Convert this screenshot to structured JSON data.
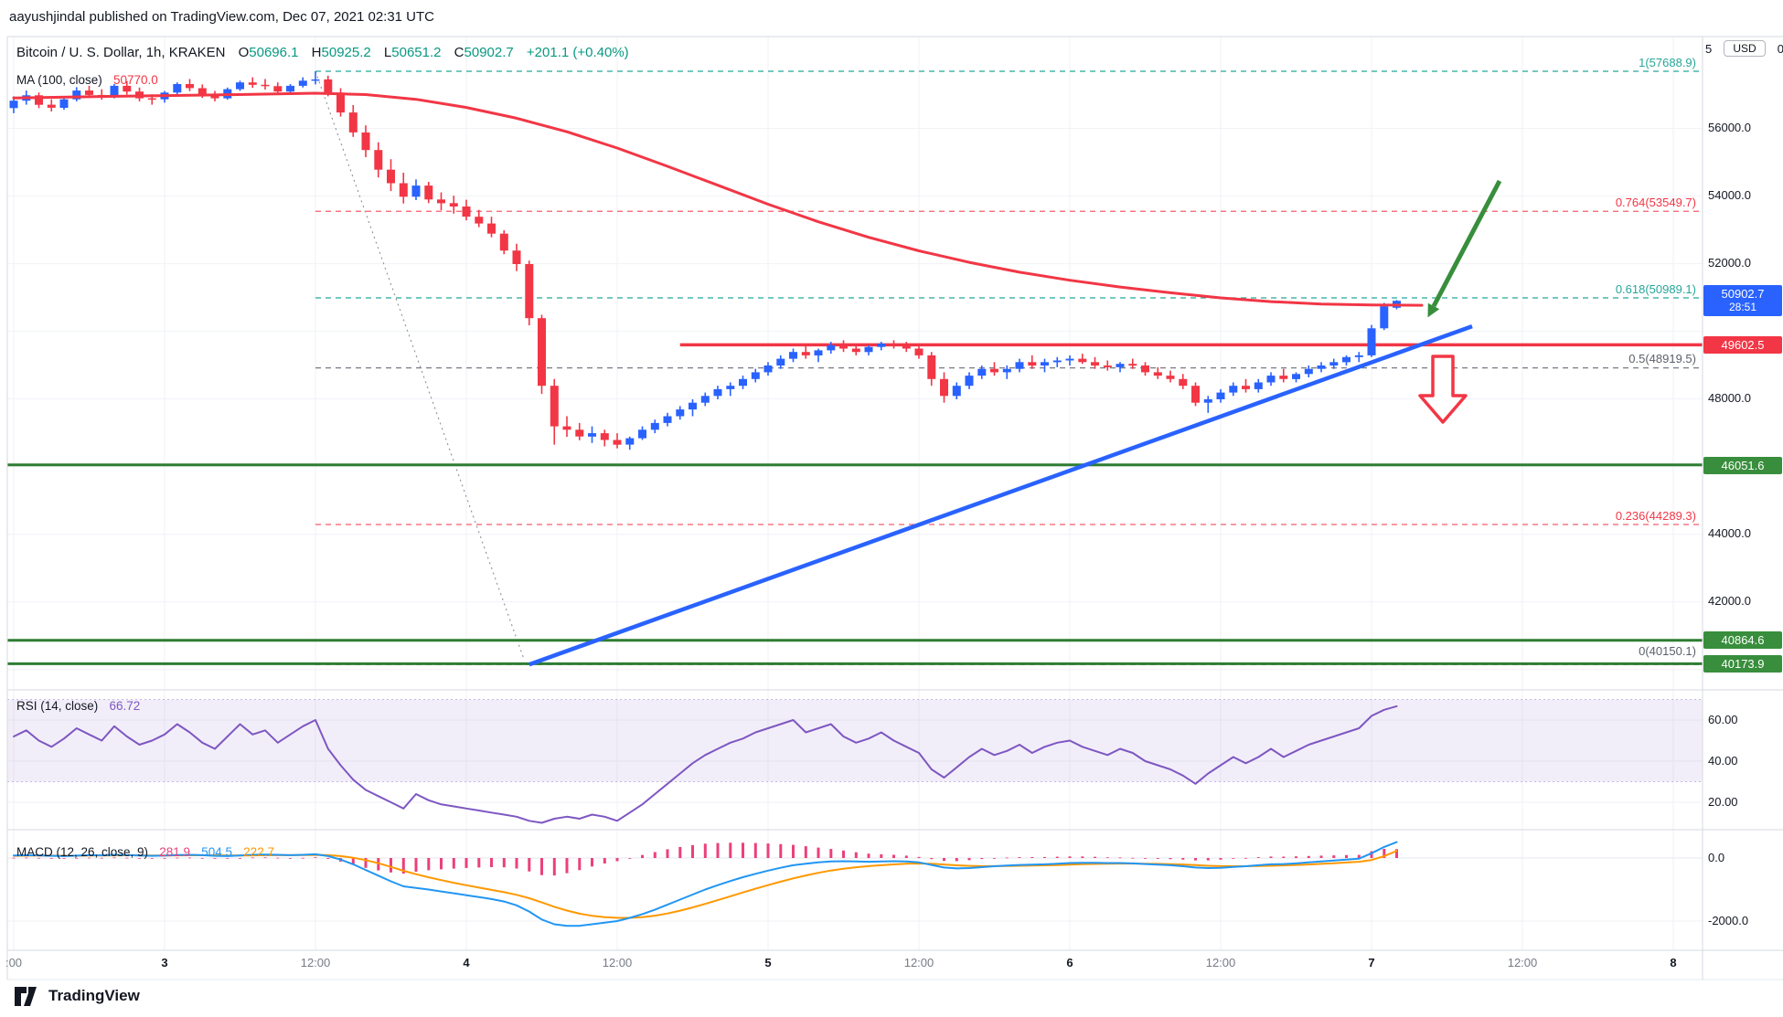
{
  "header": {
    "publish_info": "aayushjindal published on TradingView.com, Dec 07, 2021 02:31 UTC"
  },
  "footer": {
    "brand": "TradingView"
  },
  "legend": {
    "symbol_title": "Bitcoin / U. S. Dollar, 1h, KRAKEN",
    "o_label": "O",
    "o_value": "50696.1",
    "h_label": "H",
    "h_value": "50925.2",
    "l_label": "L",
    "l_value": "50651.2",
    "c_label": "C",
    "c_value": "50902.7",
    "change": "+201.1 (+0.40%)",
    "ma_label": "MA (100, close)",
    "ma_value": "50770.0",
    "rsi_label": "RSI (14, close)",
    "rsi_value": "66.72",
    "macd_label": "MACD (12, 26, close, 9)",
    "macd_hist_value": "281.9",
    "macd_value": "504.5",
    "macd_signal_value": "222.7"
  },
  "price_axis": {
    "currency": "USD",
    "top_partial_left": "5",
    "top_partial_right": "0",
    "ticks": [
      "56000.0",
      "54000.0",
      "52000.0",
      "48000.0",
      "44000.0",
      "42000.0"
    ],
    "badges": {
      "last": {
        "text": "50902.7",
        "countdown": "28:51"
      },
      "resistance": {
        "text": "49602.5"
      },
      "support1": {
        "text": "46051.6"
      },
      "support2": {
        "text": "40864.6"
      },
      "support3": {
        "text": "40173.9"
      }
    }
  },
  "rsi_axis": {
    "ticks": [
      "60.00",
      "40.00",
      "20.00"
    ]
  },
  "macd_axis": {
    "ticks": [
      "0.0",
      "-2000.0"
    ]
  },
  "fib_labels": [
    {
      "text": "1(57688.9)",
      "style": "teal"
    },
    {
      "text": "0.764(53549.7)",
      "style": "red"
    },
    {
      "text": "0.618(50989.1)",
      "style": "teal"
    },
    {
      "text": "0.5(48919.5)",
      "style": "gray"
    },
    {
      "text": "0.236(44289.3)",
      "style": "red"
    },
    {
      "text": "0(40150.1)",
      "style": "gray"
    }
  ],
  "chart_data": {
    "type": "candlestick",
    "title": "Bitcoin / U. S. Dollar, 1h, KRAKEN",
    "interval": "1h",
    "exchange": "KRAKEN",
    "current_bar": {
      "open": 50696.1,
      "high": 50925.2,
      "low": 50651.2,
      "close": 50902.7,
      "change": "+201.1 (+0.40%)"
    },
    "price_axis": {
      "range": [
        39400,
        58500
      ],
      "grid_values": [
        56000,
        54000,
        52000,
        50000,
        48000,
        46000,
        44000,
        42000,
        40000
      ]
    },
    "x_axis": {
      "labels": [
        {
          "text": ":00",
          "idx": 0
        },
        {
          "text": "3",
          "idx": 12,
          "day": true
        },
        {
          "text": "12:00",
          "idx": 24
        },
        {
          "text": "4",
          "idx": 36,
          "day": true
        },
        {
          "text": "12:00",
          "idx": 48
        },
        {
          "text": "5",
          "idx": 60,
          "day": true
        },
        {
          "text": "12:00",
          "idx": 72
        },
        {
          "text": "6",
          "idx": 84,
          "day": true
        },
        {
          "text": "12:00",
          "idx": 96
        },
        {
          "text": "7",
          "idx": 108,
          "day": true
        },
        {
          "text": "12:00",
          "idx": 120
        },
        {
          "text": "8",
          "idx": 132,
          "day": true
        }
      ]
    },
    "candles": [
      [
        56600,
        56950,
        56450,
        56820
      ],
      [
        56820,
        57120,
        56700,
        56980
      ],
      [
        56980,
        57060,
        56600,
        56700
      ],
      [
        56700,
        56860,
        56500,
        56610
      ],
      [
        56610,
        56920,
        56550,
        56860
      ],
      [
        56860,
        57220,
        56800,
        57120
      ],
      [
        57120,
        57260,
        56900,
        56990
      ],
      [
        56990,
        57160,
        56850,
        56940
      ],
      [
        56940,
        57310,
        56890,
        57260
      ],
      [
        57260,
        57400,
        57000,
        57090
      ],
      [
        57090,
        57210,
        56800,
        56890
      ],
      [
        56890,
        57010,
        56700,
        56860
      ],
      [
        56860,
        57110,
        56760,
        57060
      ],
      [
        57060,
        57360,
        57010,
        57310
      ],
      [
        57310,
        57460,
        57100,
        57190
      ],
      [
        57190,
        57300,
        56900,
        56990
      ],
      [
        56990,
        57110,
        56800,
        56890
      ],
      [
        56890,
        57210,
        56850,
        57160
      ],
      [
        57160,
        57410,
        57110,
        57360
      ],
      [
        57360,
        57510,
        57200,
        57290
      ],
      [
        57290,
        57460,
        57150,
        57250
      ],
      [
        57250,
        57360,
        57000,
        57090
      ],
      [
        57090,
        57310,
        57050,
        57260
      ],
      [
        57260,
        57510,
        57210,
        57410
      ],
      [
        57410,
        57688.9,
        57300,
        57450
      ],
      [
        57450,
        57560,
        56950,
        57060
      ],
      [
        57060,
        57190,
        56350,
        56470
      ],
      [
        56470,
        56690,
        55750,
        55880
      ],
      [
        55880,
        56090,
        55150,
        55360
      ],
      [
        55360,
        55590,
        54550,
        54780
      ],
      [
        54780,
        55090,
        54150,
        54380
      ],
      [
        54380,
        54690,
        53780,
        53980
      ],
      [
        53980,
        54490,
        53880,
        54310
      ],
      [
        54310,
        54420,
        53790,
        53900
      ],
      [
        53900,
        54110,
        53580,
        53790
      ],
      [
        53790,
        54010,
        53480,
        53690
      ],
      [
        53690,
        53890,
        53280,
        53390
      ],
      [
        53390,
        53590,
        53080,
        53190
      ],
      [
        53190,
        53390,
        52780,
        52890
      ],
      [
        52890,
        52990,
        52280,
        52390
      ],
      [
        52390,
        52590,
        51780,
        51990
      ],
      [
        51990,
        52090,
        50180,
        50390
      ],
      [
        50390,
        50490,
        48150,
        48390
      ],
      [
        48390,
        48590,
        46650,
        47190
      ],
      [
        47190,
        47490,
        46880,
        47090
      ],
      [
        47090,
        47290,
        46780,
        46890
      ],
      [
        46890,
        47190,
        46700,
        46990
      ],
      [
        46990,
        47090,
        46600,
        46790
      ],
      [
        46790,
        46990,
        46540,
        46650
      ],
      [
        46650,
        46890,
        46500,
        46840
      ],
      [
        46840,
        47190,
        46790,
        47090
      ],
      [
        47090,
        47390,
        46990,
        47290
      ],
      [
        47290,
        47590,
        47190,
        47490
      ],
      [
        47490,
        47790,
        47390,
        47690
      ],
      [
        47690,
        47990,
        47490,
        47890
      ],
      [
        47890,
        48190,
        47790,
        48090
      ],
      [
        48090,
        48390,
        47990,
        48290
      ],
      [
        48290,
        48490,
        48090,
        48390
      ],
      [
        48390,
        48690,
        48290,
        48590
      ],
      [
        48590,
        48890,
        48490,
        48790
      ],
      [
        48790,
        49090,
        48690,
        48990
      ],
      [
        48990,
        49290,
        48890,
        49190
      ],
      [
        49190,
        49490,
        49090,
        49390
      ],
      [
        49390,
        49590,
        49190,
        49290
      ],
      [
        49290,
        49490,
        49090,
        49440
      ],
      [
        49440,
        49690,
        49340,
        49590
      ],
      [
        49590,
        49740,
        49390,
        49490
      ],
      [
        49490,
        49640,
        49290,
        49390
      ],
      [
        49390,
        49590,
        49290,
        49540
      ],
      [
        49540,
        49690,
        49440,
        49640
      ],
      [
        49640,
        49740,
        49490,
        49590
      ],
      [
        49590,
        49690,
        49390,
        49490
      ],
      [
        49490,
        49590,
        49190,
        49290
      ],
      [
        49290,
        49390,
        48390,
        48590
      ],
      [
        48590,
        48790,
        47890,
        48090
      ],
      [
        48090,
        48490,
        47990,
        48390
      ],
      [
        48390,
        48790,
        48290,
        48690
      ],
      [
        48690,
        48990,
        48590,
        48890
      ],
      [
        48890,
        49090,
        48690,
        48790
      ],
      [
        48790,
        48990,
        48590,
        48890
      ],
      [
        48890,
        49190,
        48790,
        49090
      ],
      [
        49090,
        49290,
        48890,
        48990
      ],
      [
        48990,
        49190,
        48790,
        49090
      ],
      [
        49090,
        49240,
        48940,
        49140
      ],
      [
        49140,
        49290,
        48990,
        49190
      ],
      [
        49190,
        49340,
        49040,
        49090
      ],
      [
        49090,
        49240,
        48890,
        48990
      ],
      [
        48990,
        49140,
        48840,
        48940
      ],
      [
        48940,
        49090,
        48790,
        49040
      ],
      [
        49040,
        49190,
        48890,
        48990
      ],
      [
        48990,
        49090,
        48690,
        48790
      ],
      [
        48790,
        48940,
        48590,
        48690
      ],
      [
        48690,
        48840,
        48490,
        48590
      ],
      [
        48590,
        48740,
        48290,
        48390
      ],
      [
        48390,
        48490,
        47790,
        47890
      ],
      [
        47890,
        48090,
        47590,
        47990
      ],
      [
        47990,
        48290,
        47890,
        48190
      ],
      [
        48190,
        48490,
        48090,
        48390
      ],
      [
        48390,
        48590,
        48190,
        48290
      ],
      [
        48290,
        48590,
        48190,
        48490
      ],
      [
        48490,
        48790,
        48390,
        48690
      ],
      [
        48690,
        48890,
        48490,
        48590
      ],
      [
        48590,
        48790,
        48490,
        48740
      ],
      [
        48740,
        48990,
        48640,
        48890
      ],
      [
        48890,
        49090,
        48790,
        48990
      ],
      [
        48990,
        49190,
        48890,
        49090
      ],
      [
        49090,
        49290,
        48990,
        49240
      ],
      [
        49240,
        49390,
        49090,
        49290
      ],
      [
        49290,
        50190,
        49240,
        50090
      ],
      [
        50090,
        50840,
        50040,
        50740
      ],
      [
        50696.1,
        50925.2,
        50651.2,
        50902.7
      ]
    ],
    "ma100": {
      "period": 100,
      "source": "close",
      "last": 50770.0,
      "anchors": [
        [
          0,
          56900
        ],
        [
          8,
          56950
        ],
        [
          16,
          56990
        ],
        [
          24,
          57040
        ],
        [
          28,
          57000
        ],
        [
          32,
          56860
        ],
        [
          36,
          56620
        ],
        [
          40,
          56300
        ],
        [
          44,
          55900
        ],
        [
          48,
          55420
        ],
        [
          52,
          54880
        ],
        [
          56,
          54320
        ],
        [
          60,
          53760
        ],
        [
          64,
          53240
        ],
        [
          68,
          52780
        ],
        [
          72,
          52380
        ],
        [
          76,
          52040
        ],
        [
          80,
          51750
        ],
        [
          84,
          51510
        ],
        [
          88,
          51310
        ],
        [
          92,
          51140
        ],
        [
          96,
          50990
        ],
        [
          100,
          50880
        ],
        [
          104,
          50810
        ],
        [
          108,
          50780
        ],
        [
          112,
          50770
        ]
      ]
    },
    "trendline_support": {
      "from": [
        41,
        40150
      ],
      "to": [
        116,
        50150
      ],
      "color": "#2962FF"
    },
    "resistance_line": {
      "price": 49602.5,
      "from_idx": 53,
      "color": "#F23645"
    },
    "support_lines": [
      46051.6,
      40864.6,
      40173.9
    ],
    "fib_retracement": {
      "high": 57688.9,
      "low": 40150.1,
      "from_idx": 24,
      "levels": [
        {
          "level": 1,
          "value": 57688.9,
          "style": "teal"
        },
        {
          "level": 0.764,
          "value": 53549.7,
          "style": "red"
        },
        {
          "level": 0.618,
          "value": 50989.1,
          "style": "teal"
        },
        {
          "level": 0.5,
          "value": 48919.5,
          "style": "gray"
        },
        {
          "level": 0.236,
          "value": 44289.3,
          "style": "red"
        },
        {
          "level": 0,
          "value": 40150.1,
          "style": "gray"
        }
      ]
    },
    "guideline": {
      "from": [
        24,
        57688.9
      ],
      "to": [
        40.6,
        40285
      ]
    },
    "arrows": [
      {
        "type": "trend-arrow",
        "color": "green",
        "direction": "down-left"
      },
      {
        "type": "block-arrow",
        "color": "red",
        "direction": "down"
      }
    ],
    "rsi": {
      "period": 14,
      "last": 66.72,
      "band": [
        30,
        70
      ],
      "ticks": [
        60,
        40,
        20
      ],
      "values": [
        52,
        55,
        50,
        47,
        51,
        56,
        53,
        50,
        57,
        52,
        48,
        50,
        53,
        58,
        54,
        49,
        46,
        52,
        58,
        53,
        55,
        49,
        53,
        57,
        60,
        46,
        38,
        31,
        26,
        23,
        20,
        17,
        24,
        21,
        19,
        18,
        17,
        16,
        15,
        14,
        13,
        11,
        10,
        12,
        13,
        12,
        14,
        13,
        11,
        15,
        19,
        24,
        29,
        34,
        39,
        43,
        46,
        49,
        51,
        54,
        56,
        58,
        60,
        54,
        56,
        58,
        52,
        49,
        51,
        54,
        50,
        47,
        44,
        36,
        32,
        37,
        42,
        46,
        43,
        45,
        48,
        44,
        47,
        49,
        50,
        47,
        45,
        43,
        46,
        44,
        40,
        38,
        36,
        33,
        29,
        34,
        38,
        42,
        39,
        42,
        46,
        42,
        45,
        48,
        50,
        52,
        54,
        56,
        62,
        65,
        66.72
      ]
    },
    "macd": {
      "fast": 12,
      "slow": 26,
      "signal_period": 9,
      "last": {
        "hist": 281.9,
        "macd": 504.5,
        "signal": 222.7
      },
      "ticks": [
        0,
        -2000
      ],
      "macd_values": [
        80,
        90,
        85,
        70,
        60,
        75,
        90,
        85,
        100,
        95,
        80,
        70,
        75,
        95,
        100,
        90,
        70,
        60,
        80,
        100,
        110,
        100,
        90,
        100,
        120,
        60,
        -50,
        -200,
        -380,
        -560,
        -740,
        -900,
        -950,
        -1000,
        -1060,
        -1120,
        -1180,
        -1240,
        -1300,
        -1380,
        -1500,
        -1700,
        -1950,
        -2100,
        -2150,
        -2150,
        -2100,
        -2050,
        -2000,
        -1900,
        -1780,
        -1640,
        -1480,
        -1320,
        -1160,
        -1000,
        -860,
        -730,
        -610,
        -500,
        -400,
        -310,
        -230,
        -180,
        -140,
        -110,
        -100,
        -110,
        -120,
        -110,
        -100,
        -110,
        -140,
        -220,
        -300,
        -330,
        -320,
        -290,
        -260,
        -240,
        -220,
        -210,
        -200,
        -180,
        -160,
        -150,
        -150,
        -160,
        -160,
        -170,
        -190,
        -210,
        -230,
        -260,
        -300,
        -320,
        -310,
        -280,
        -260,
        -230,
        -200,
        -190,
        -170,
        -140,
        -110,
        -80,
        -50,
        -20,
        150,
        350,
        504.5
      ],
      "signal_values": [
        70,
        75,
        78,
        76,
        73,
        73,
        77,
        79,
        83,
        86,
        85,
        82,
        80,
        83,
        86,
        87,
        84,
        79,
        79,
        83,
        89,
        91,
        91,
        93,
        98,
        90,
        62,
        10,
        -68,
        -166,
        -281,
        -405,
        -514,
        -611,
        -701,
        -785,
        -864,
        -939,
        -1011,
        -1085,
        -1168,
        -1274,
        -1409,
        -1547,
        -1668,
        -1764,
        -1831,
        -1875,
        -1900,
        -1900,
        -1876,
        -1829,
        -1759,
        -1671,
        -1569,
        -1455,
        -1336,
        -1215,
        -1094,
        -975,
        -860,
        -750,
        -646,
        -553,
        -470,
        -398,
        -338,
        -293,
        -258,
        -228,
        -202,
        -184,
        -175,
        -184,
        -207,
        -232,
        -250,
        -258,
        -258,
        -254,
        -247,
        -240,
        -232,
        -222,
        -210,
        -198,
        -188,
        -182,
        -178,
        -176,
        -179,
        -185,
        -194,
        -207,
        -226,
        -245,
        -258,
        -262,
        -262,
        -256,
        -245,
        -234,
        -221,
        -205,
        -186,
        -165,
        -142,
        -118,
        -64,
        60,
        222.7
      ]
    }
  }
}
